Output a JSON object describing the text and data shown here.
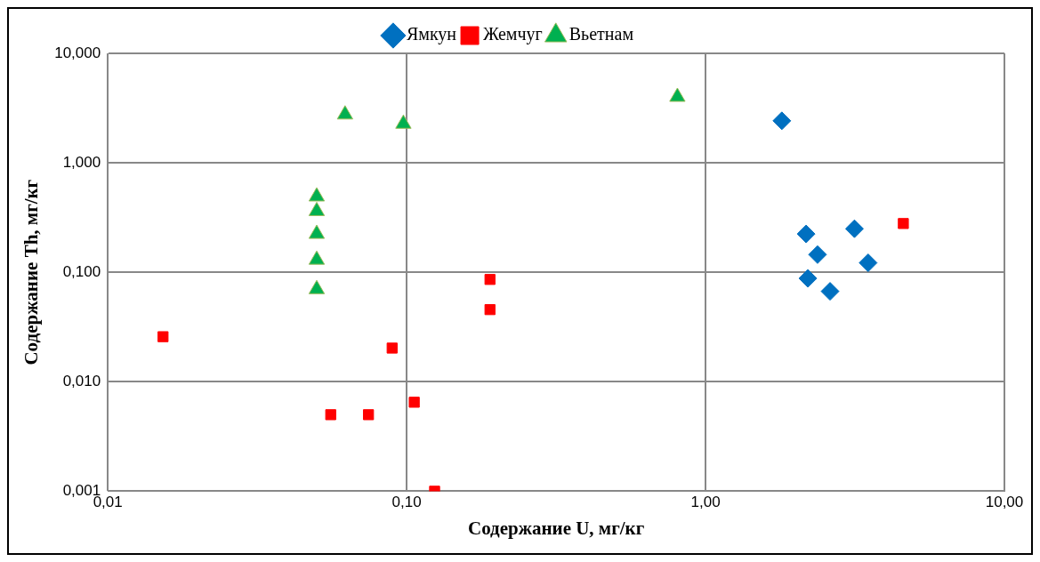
{
  "chart_data": {
    "type": "scatter",
    "xlabel": "Содержание U, мг/кг",
    "ylabel": "Содержание Th, мг/кг",
    "log": "xy",
    "grid": true,
    "legend": "top",
    "xlim": [
      0.01,
      10
    ],
    "xticks": [
      {
        "value": 0.01,
        "label": "0,01"
      },
      {
        "value": 0.1,
        "label": "0,10"
      },
      {
        "value": 1,
        "label": "1,00"
      },
      {
        "value": 10,
        "label": "10,00"
      }
    ],
    "ylim": [
      0.001,
      10
    ],
    "yticks": [
      {
        "value": 0.001,
        "label": "0,001"
      },
      {
        "value": 0.01,
        "label": "0,010"
      },
      {
        "value": 0.1,
        "label": "0,100"
      },
      {
        "value": 1,
        "label": "1,000"
      },
      {
        "value": 10,
        "label": "10,000"
      }
    ],
    "series": [
      {
        "name": "Ямкун",
        "color": "#0070c0",
        "marker": "diamond",
        "x": [
          1.8,
          2.17,
          2.37,
          3.15,
          3.5,
          2.2,
          2.61
        ],
        "values": [
          2.42,
          0.224,
          0.145,
          0.25,
          0.122,
          0.088,
          0.067
        ]
      },
      {
        "name": "Жемчуг",
        "color": "#ff0000",
        "marker": "square",
        "x": [
          4.59,
          0.0153,
          0.0557,
          0.0745,
          0.0894,
          0.106,
          0.124,
          0.19,
          0.19
        ],
        "values": [
          0.279,
          0.0258,
          0.005,
          0.005,
          0.0203,
          0.0065,
          0.001,
          0.086,
          0.0456
        ]
      },
      {
        "name": "Вьетнам",
        "color": "#00b050",
        "marker": "triangle",
        "x": [
          0.05,
          0.05,
          0.05,
          0.05,
          0.05,
          0.0622,
          0.0975,
          0.805
        ],
        "values": [
          0.492,
          0.362,
          0.224,
          0.13,
          0.07,
          2.76,
          2.27,
          4.0
        ]
      }
    ]
  }
}
